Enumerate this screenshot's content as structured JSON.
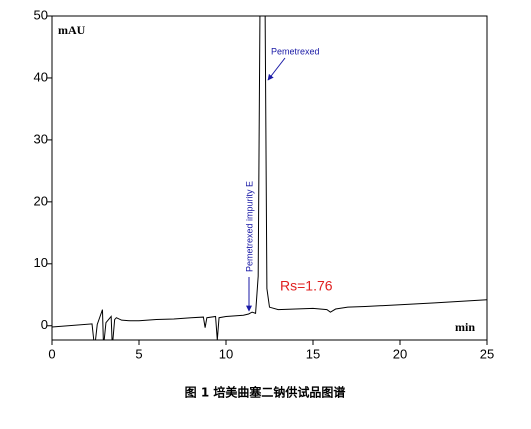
{
  "chart_data": {
    "type": "line",
    "y_label": "mAU",
    "x_label": "min",
    "caption": "图 1  培美曲塞二钠供试品图谱",
    "annotations": [
      "Pemetrexed",
      "Pemetrexed impurity E",
      "Rs=1.76"
    ],
    "color": "#000000",
    "x": [
      0,
      2.3,
      2.4,
      2.5,
      2.6,
      2.9,
      2.95,
      3.0,
      3.1,
      3.4,
      3.45,
      3.5,
      3.6,
      3.7,
      4.0,
      4.5,
      5,
      6,
      7,
      8,
      8.7,
      8.8,
      8.9,
      9.4,
      9.5,
      9.6,
      10,
      11,
      11.3,
      11.5,
      11.7,
      11.85,
      11.95,
      12.25,
      12.35,
      12.5,
      13,
      14,
      15,
      15.8,
      16,
      16.3,
      17,
      18,
      20,
      22,
      25
    ],
    "values": [
      -0.2,
      0.3,
      -2.3,
      -2.3,
      0.2,
      2.6,
      -2.3,
      -2.3,
      0.5,
      1.5,
      -2.3,
      -2.3,
      1.0,
      1.3,
      0.9,
      0.8,
      0.8,
      1.0,
      1.1,
      1.3,
      1.4,
      -0.3,
      1.3,
      1.5,
      -2.3,
      1.3,
      1.5,
      1.7,
      1.9,
      2.2,
      2.0,
      8,
      50,
      50,
      6,
      3.0,
      2.6,
      2.7,
      2.8,
      2.6,
      2.2,
      2.7,
      3.0,
      3.1,
      3.4,
      3.7,
      4.2
    ],
    "xlim": [
      0,
      25
    ],
    "xticks": [
      0,
      5,
      10,
      15,
      20,
      25
    ],
    "ylim": [
      -2.3,
      50
    ],
    "yticks": [
      0,
      10,
      20,
      30,
      40,
      50
    ]
  }
}
